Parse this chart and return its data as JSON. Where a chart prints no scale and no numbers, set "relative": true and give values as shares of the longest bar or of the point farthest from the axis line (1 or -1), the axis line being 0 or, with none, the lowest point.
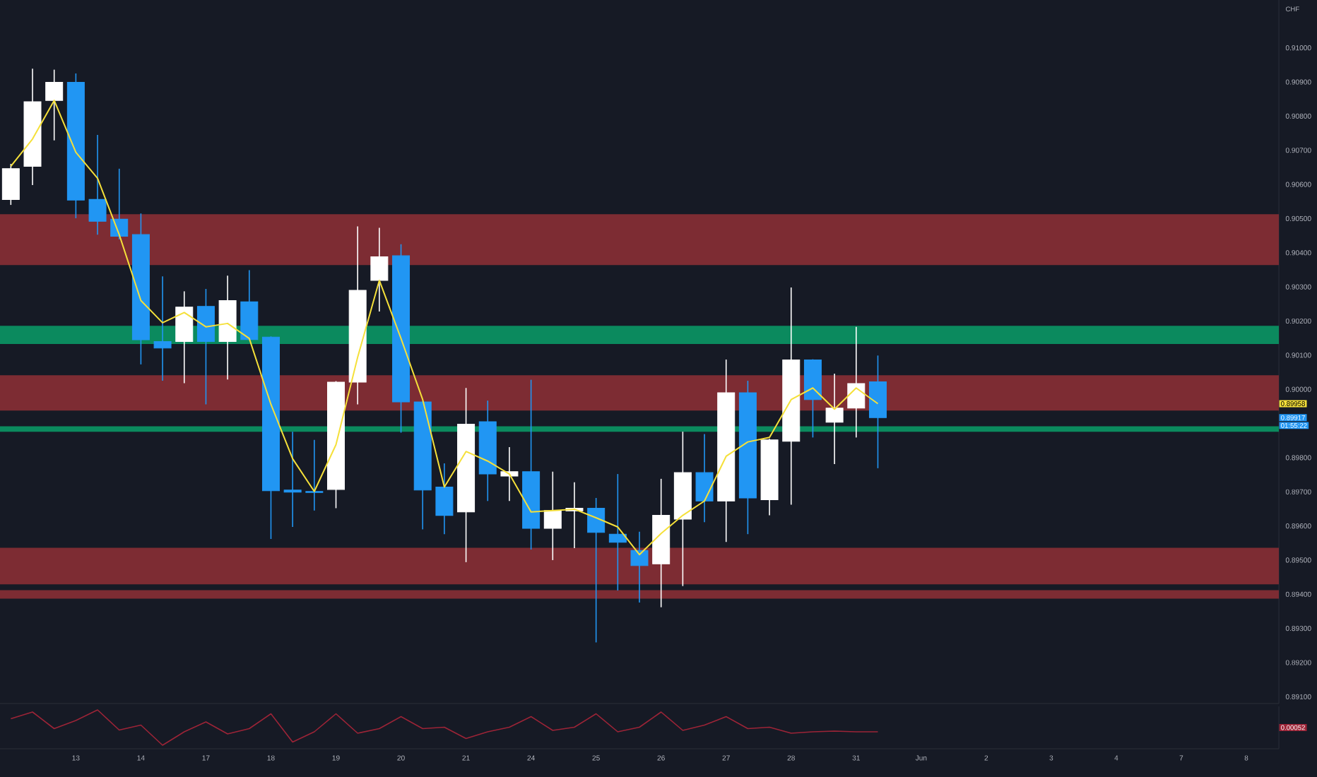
{
  "chart_data": [
    {
      "type": "candlestick",
      "categories": [
        null,
        null,
        null,
        "13",
        null,
        null,
        "14",
        null,
        null,
        "17",
        null,
        null,
        "18",
        null,
        null,
        "19",
        null,
        null,
        "20",
        null,
        null,
        "21",
        null,
        null,
        "24",
        null,
        null,
        "25",
        null,
        null,
        "26",
        null,
        null,
        "27",
        null,
        null,
        "28",
        null,
        null,
        "31",
        null,
        null,
        "Jun",
        null,
        null,
        "2",
        null,
        null,
        "3",
        null,
        null,
        "4",
        null,
        null,
        "7",
        null,
        null,
        "8",
        null
      ],
      "ohlc": [
        [
          0.90556,
          0.9066,
          0.9054,
          0.90646
        ],
        [
          0.90653,
          0.90939,
          0.90598,
          0.90842
        ],
        [
          0.90846,
          0.90936,
          0.90729,
          0.90899
        ],
        [
          0.90899,
          0.90925,
          0.90501,
          0.90554
        ],
        [
          0.90556,
          0.90745,
          0.90453,
          0.90492
        ],
        [
          0.90498,
          0.90646,
          0.90439,
          0.90448
        ],
        [
          0.90453,
          0.90515,
          0.90073,
          0.90145
        ],
        [
          0.9014,
          0.90331,
          0.90025,
          0.90121
        ],
        [
          0.9014,
          0.90287,
          0.90018,
          0.90241
        ],
        [
          0.90243,
          0.90294,
          0.89956,
          0.9014
        ],
        [
          0.9014,
          0.90333,
          0.90029,
          0.9026
        ],
        [
          0.90256,
          0.90349,
          0.90144,
          0.90146
        ],
        [
          0.90153,
          0.90155,
          0.89562,
          0.89703
        ],
        [
          0.89705,
          0.89876,
          0.89597,
          0.89699
        ],
        [
          0.89701,
          0.89852,
          0.89645,
          0.89698
        ],
        [
          0.89707,
          0.90024,
          0.89652,
          0.90021
        ],
        [
          0.90021,
          0.90477,
          0.89956,
          0.9029
        ],
        [
          0.90319,
          0.90473,
          0.90228,
          0.90388
        ],
        [
          0.90391,
          0.90425,
          0.89873,
          0.89963
        ],
        [
          0.89963,
          0.89965,
          0.8959,
          0.89705
        ],
        [
          0.89714,
          0.89783,
          0.89576,
          0.89631
        ],
        [
          0.89641,
          0.90004,
          0.89494,
          0.89898
        ],
        [
          0.89905,
          0.89967,
          0.89673,
          0.89752
        ],
        [
          0.89746,
          0.89831,
          0.89673,
          0.89759
        ],
        [
          0.89759,
          0.90028,
          0.89531,
          0.89593
        ],
        [
          0.89593,
          0.89759,
          0.895,
          0.89645
        ],
        [
          0.89644,
          0.89728,
          0.89535,
          0.89652
        ],
        [
          0.89652,
          0.89682,
          0.89259,
          0.89581
        ],
        [
          0.89576,
          0.89752,
          0.89411,
          0.89552
        ],
        [
          0.89528,
          0.89583,
          0.89376,
          0.89484
        ],
        [
          0.89489,
          0.89738,
          0.89362,
          0.89631
        ],
        [
          0.8962,
          0.89876,
          0.89424,
          0.89756
        ],
        [
          0.89756,
          0.89869,
          0.89611,
          0.89673
        ],
        [
          0.89673,
          0.90087,
          0.89553,
          0.8999
        ],
        [
          0.8999,
          0.90025,
          0.89576,
          0.89682
        ],
        [
          0.89677,
          0.89855,
          0.89631,
          0.89852
        ],
        [
          0.89848,
          0.90298,
          0.89662,
          0.90086
        ],
        [
          0.90086,
          0.90088,
          0.89859,
          0.8997
        ],
        [
          0.89904,
          0.90046,
          0.89781,
          0.89945
        ],
        [
          0.89945,
          0.90183,
          0.89859,
          0.90017
        ],
        [
          0.90022,
          0.90099,
          0.89769,
          0.89917
        ],
        null,
        null,
        null,
        null,
        null,
        null,
        null,
        null,
        null,
        null,
        null,
        null,
        null,
        null,
        null,
        null,
        null,
        null
      ],
      "colors": [
        "#ffffff",
        "#ffffff",
        "#ffffff",
        "#2196f3",
        "#2196f3",
        "#2196f3",
        "#2196f3",
        "#2196f3",
        "#ffffff",
        "#2196f3",
        "#ffffff",
        "#2196f3",
        "#2196f3",
        "#2196f3",
        "#2196f3",
        "#ffffff",
        "#ffffff",
        "#ffffff",
        "#2196f3",
        "#2196f3",
        "#2196f3",
        "#ffffff",
        "#2196f3",
        "#ffffff",
        "#2196f3",
        "#ffffff",
        "#ffffff",
        "#2196f3",
        "#2196f3",
        "#2196f3",
        "#ffffff",
        "#ffffff",
        "#2196f3",
        "#ffffff",
        "#2196f3",
        "#ffffff",
        "#ffffff",
        "#2196f3",
        "#ffffff",
        "#ffffff",
        "#2196f3",
        null,
        null,
        null,
        null,
        null,
        null,
        null,
        null,
        null,
        null,
        null,
        null,
        null,
        null,
        null,
        null,
        null,
        null
      ],
      "series": [
        {
          "type": "line",
          "color": "#f5e03a",
          "values": [
            0.90653,
            0.90733,
            0.90846,
            0.90694,
            0.90618,
            0.90453,
            0.9026,
            0.90195,
            0.90225,
            0.90183,
            0.90193,
            0.90149,
            0.89956,
            0.89797,
            0.89701,
            0.89838,
            0.90094,
            0.90319,
            0.90149,
            0.8997,
            0.89714,
            0.89818,
            0.8979,
            0.89752,
            0.89641,
            0.89645,
            0.89649,
            0.89624,
            0.89597,
            0.89516,
            0.89578,
            0.89631,
            0.89673,
            0.89804,
            0.89846,
            0.89859,
            0.8997,
            0.90004,
            0.89942,
            0.90004,
            0.89958,
            null,
            null,
            null,
            null,
            null,
            null,
            null,
            null,
            null,
            null,
            null,
            null,
            null,
            null,
            null,
            null,
            null,
            null
          ]
        }
      ],
      "ylim": [
        0.8908,
        0.9114
      ],
      "yticks": [
        {
          "value": 0.891,
          "label": "0.89100"
        },
        {
          "value": 0.892,
          "label": "0.89200"
        },
        {
          "value": 0.893,
          "label": "0.89300"
        },
        {
          "value": 0.894,
          "label": "0.89400"
        },
        {
          "value": 0.895,
          "label": "0.89500"
        },
        {
          "value": 0.896,
          "label": "0.89600"
        },
        {
          "value": 0.897,
          "label": "0.89700"
        },
        {
          "value": 0.898,
          "label": "0.89800"
        },
        {
          "value": 0.9,
          "label": "0.90000"
        },
        {
          "value": 0.901,
          "label": "0.90100"
        },
        {
          "value": 0.902,
          "label": "0.90200"
        },
        {
          "value": 0.903,
          "label": "0.90300"
        },
        {
          "value": 0.904,
          "label": "0.90400"
        },
        {
          "value": 0.905,
          "label": "0.90500"
        },
        {
          "value": 0.906,
          "label": "0.90600"
        },
        {
          "value": 0.907,
          "label": "0.90700"
        },
        {
          "value": 0.908,
          "label": "0.90800"
        },
        {
          "value": 0.909,
          "label": "0.90900"
        },
        {
          "value": 0.91,
          "label": "0.91000"
        }
      ],
      "bands": [
        {
          "axis": "y",
          "from": 0.90364,
          "to": 0.90513,
          "color": "#7d2c33"
        },
        {
          "axis": "y",
          "from": 0.90133,
          "to": 0.90186,
          "color": "#0b8a5e"
        },
        {
          "axis": "y",
          "from": 0.89938,
          "to": 0.90041,
          "color": "#7d2c33"
        },
        {
          "axis": "y",
          "from": 0.89876,
          "to": 0.89892,
          "color": "#0b8a5e"
        },
        {
          "axis": "y",
          "from": 0.89429,
          "to": 0.89536,
          "color": "#7d2c33"
        },
        {
          "axis": "y",
          "from": 0.89387,
          "to": 0.89412,
          "color": "#7d2c33"
        }
      ],
      "annotations": [
        "CHF",
        "0.89958",
        "0.89917",
        "01:55:22"
      ]
    },
    {
      "type": "line",
      "relative": true,
      "color": "#9c2437",
      "categories": [
        null,
        null,
        null,
        null,
        null,
        null,
        null,
        null,
        null,
        null,
        null,
        null,
        null,
        null,
        null,
        null,
        null,
        null,
        null,
        null,
        null,
        null,
        null,
        null,
        null,
        null,
        null,
        null,
        null,
        null,
        null,
        null,
        null,
        null,
        null,
        null,
        null,
        null,
        null,
        null,
        null,
        null,
        null,
        null,
        null,
        null,
        null,
        null,
        null,
        null,
        null,
        null,
        null,
        null,
        null,
        null,
        null,
        null,
        null
      ],
      "values": [
        0.75,
        0.94,
        0.47,
        0.7,
        1.0,
        0.43,
        0.57,
        0,
        0.38,
        0.66,
        0.32,
        0.47,
        0.89,
        0.09,
        0.38,
        0.89,
        0.34,
        0.47,
        0.81,
        0.47,
        0.51,
        0.19,
        0.38,
        0.51,
        0.81,
        0.42,
        0.51,
        0.89,
        0.38,
        0.51,
        0.94,
        0.42,
        0.57,
        0.81,
        0.47,
        0.51,
        0.34,
        0.38,
        0.4,
        0.38,
        0.38,
        null,
        null,
        null,
        null,
        null,
        null,
        null,
        null,
        null,
        null,
        null,
        null,
        null,
        null,
        null,
        null,
        null,
        null
      ],
      "annotations": [
        "0.00052"
      ]
    }
  ]
}
